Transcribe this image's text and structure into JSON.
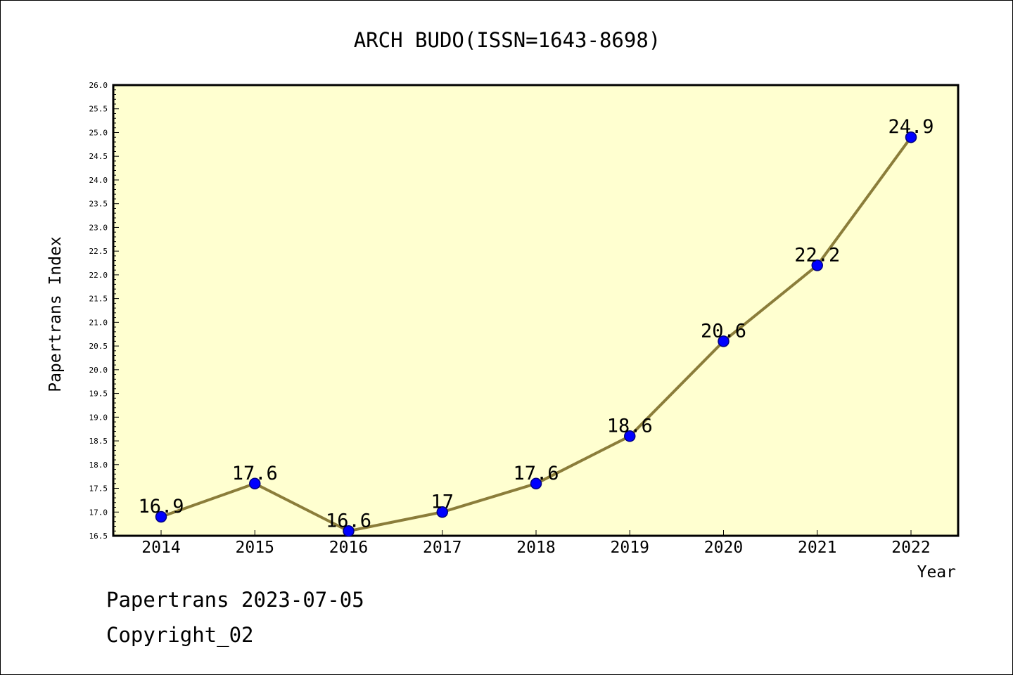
{
  "chart_data": {
    "type": "line",
    "title": "ARCH BUDO(ISSN=1643-8698)",
    "xlabel": "Year",
    "ylabel": "Papertrans Index",
    "categories": [
      "2014",
      "2015",
      "2016",
      "2017",
      "2018",
      "2019",
      "2020",
      "2021",
      "2022"
    ],
    "values": [
      16.9,
      17.6,
      16.6,
      17.0,
      17.6,
      18.6,
      20.6,
      22.2,
      24.9
    ],
    "data_labels": [
      "16.9",
      "17.6",
      "16.6",
      "17",
      "17.6",
      "18.6",
      "20.6",
      "22.2",
      "24.9"
    ],
    "ylim": [
      16.5,
      26.0
    ],
    "yticks": [
      "16.5",
      "17.0",
      "17.5",
      "18.0",
      "18.5",
      "19.0",
      "19.5",
      "20.0",
      "20.5",
      "21.0",
      "21.5",
      "22.0",
      "22.5",
      "23.0",
      "23.5",
      "24.0",
      "24.5",
      "25.0",
      "25.5",
      "26.0"
    ],
    "grid": false,
    "colors": {
      "plot_background": "#ffffd0",
      "line": "#8b7d3a",
      "marker": "#0000ff",
      "marker_edge": "#000080"
    }
  },
  "footer": {
    "line1": "Papertrans 2023-07-05",
    "line2": "Copyright_02"
  }
}
